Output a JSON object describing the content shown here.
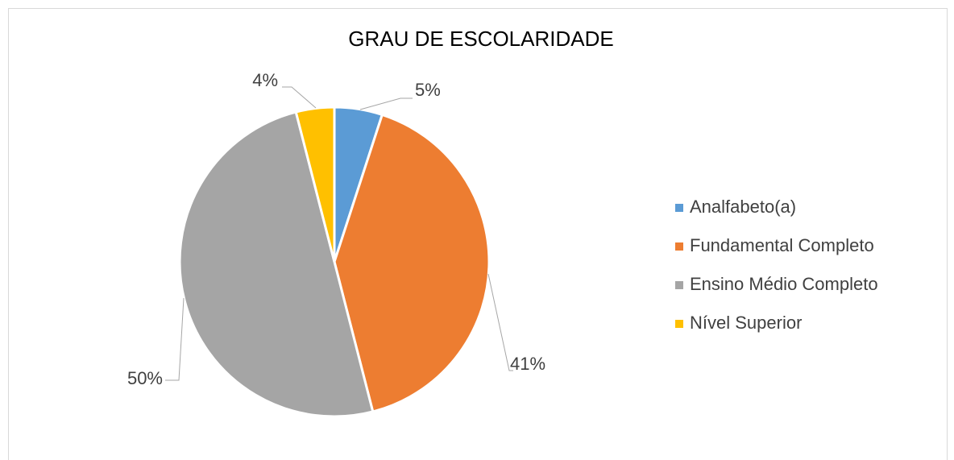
{
  "chart_data": {
    "type": "pie",
    "title": "GRAU DE ESCOLARIDADE",
    "categories": [
      "Analfabeto(a)",
      "Fundamental Completo",
      "Ensino Médio Completo",
      "Nível Superior"
    ],
    "values": [
      5,
      41,
      50,
      4
    ],
    "value_labels": [
      "5%",
      "41%",
      "50%",
      "4%"
    ],
    "colors": [
      "#5b9bd5",
      "#ed7d31",
      "#a5a5a5",
      "#ffc000"
    ],
    "legend": "right"
  }
}
